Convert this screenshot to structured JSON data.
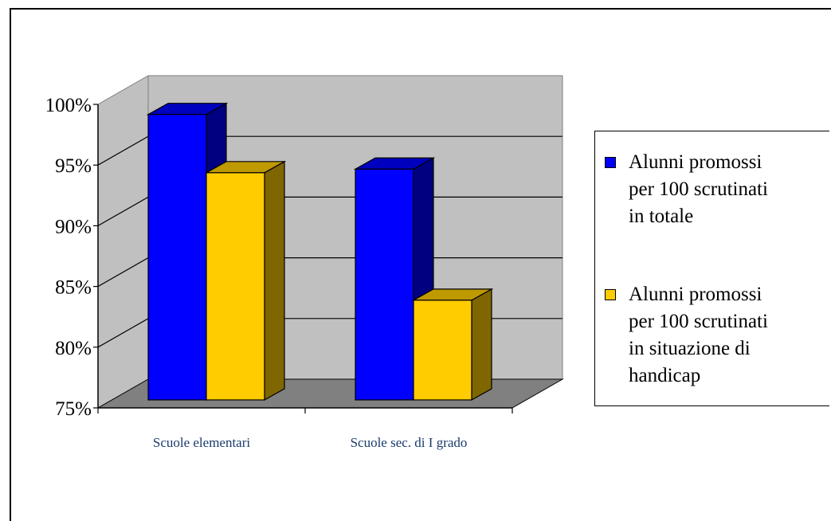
{
  "chart_data": {
    "type": "bar",
    "style": "3d-clustered-column",
    "categories": [
      "Scuole elementari",
      "Scuole sec. di I grado"
    ],
    "series": [
      {
        "name": "Alunni promossi per 100 scrutinati in totale",
        "values": [
          99.3,
          94.8
        ],
        "color": "#0000ff"
      },
      {
        "name": "Alunni promossi per 100 scrutinati in situazione di handicap",
        "values": [
          94.5,
          84.0
        ],
        "color": "#ffcc00"
      }
    ],
    "yticks": [
      "75%",
      "80%",
      "85%",
      "90%",
      "95%",
      "100%"
    ],
    "ylim": [
      75,
      100
    ],
    "grid": true,
    "legend_position": "right",
    "colors": {
      "wall": "#c0c0c0",
      "floor": "#808080"
    }
  },
  "legend": {
    "items": [
      {
        "label": "Alunni promossi\nper 100 scrutinati\nin totale",
        "color": "#0000ff"
      },
      {
        "label": "Alunni promossi\nper 100 scrutinati\nin situazione di\nhandicap",
        "color": "#ffcc00"
      }
    ]
  }
}
